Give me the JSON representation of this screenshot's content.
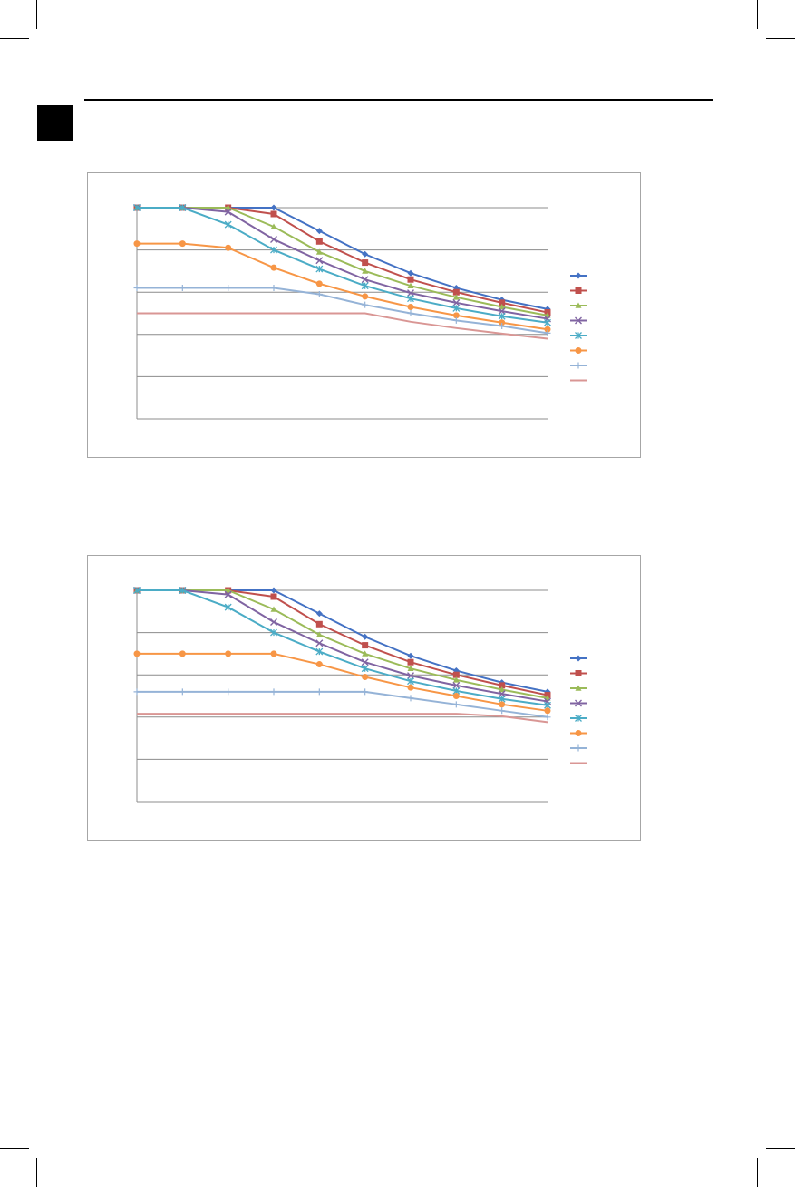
{
  "chart_data": [
    {
      "type": "line",
      "title": "",
      "xlabel": "",
      "ylabel": "",
      "x": [
        1,
        2,
        3,
        4,
        5,
        6,
        7,
        8,
        9,
        10
      ],
      "ylim": [
        0,
        5
      ],
      "yticks": [
        0,
        1,
        2,
        3,
        4,
        5
      ],
      "grid": true,
      "legend_position": "right",
      "series": [
        {
          "marker": "diamond",
          "color": "#4472c4",
          "values": [
            5,
            5,
            5,
            5,
            4.45,
            3.9,
            3.45,
            3.1,
            2.82,
            2.6
          ]
        },
        {
          "marker": "square",
          "color": "#c0504d",
          "values": [
            5,
            5,
            5,
            4.85,
            4.2,
            3.7,
            3.3,
            3.0,
            2.75,
            2.52
          ]
        },
        {
          "marker": "triangle",
          "color": "#9bbb59",
          "values": [
            5,
            5,
            5,
            4.55,
            3.95,
            3.5,
            3.15,
            2.88,
            2.65,
            2.45
          ]
        },
        {
          "marker": "x",
          "color": "#8064a2",
          "values": [
            5,
            5,
            4.9,
            4.25,
            3.75,
            3.3,
            2.98,
            2.75,
            2.55,
            2.37
          ]
        },
        {
          "marker": "star",
          "color": "#4bacc6",
          "values": [
            5,
            5,
            4.6,
            4.0,
            3.55,
            3.15,
            2.85,
            2.62,
            2.43,
            2.28
          ]
        },
        {
          "marker": "circle",
          "color": "#f79646",
          "values": [
            4.15,
            4.15,
            4.05,
            3.58,
            3.2,
            2.9,
            2.65,
            2.45,
            2.28,
            2.12
          ]
        },
        {
          "marker": "plus",
          "color": "#95b3d7",
          "values": [
            3.1,
            3.1,
            3.1,
            3.1,
            2.95,
            2.7,
            2.5,
            2.33,
            2.2,
            2.03
          ]
        },
        {
          "marker": "none",
          "color": "#d99694",
          "values": [
            2.5,
            2.5,
            2.5,
            2.5,
            2.5,
            2.5,
            2.3,
            2.15,
            2.02,
            1.9
          ]
        }
      ]
    },
    {
      "type": "line",
      "title": "",
      "xlabel": "",
      "ylabel": "",
      "x": [
        1,
        2,
        3,
        4,
        5,
        6,
        7,
        8,
        9,
        10
      ],
      "ylim": [
        0,
        5
      ],
      "yticks": [
        0,
        1,
        2,
        3,
        4,
        5
      ],
      "grid": true,
      "legend_position": "right",
      "series": [
        {
          "marker": "diamond",
          "color": "#4472c4",
          "values": [
            5,
            5,
            5,
            5,
            4.45,
            3.9,
            3.45,
            3.1,
            2.82,
            2.6
          ]
        },
        {
          "marker": "square",
          "color": "#c0504d",
          "values": [
            5,
            5,
            5,
            4.85,
            4.2,
            3.7,
            3.3,
            3.0,
            2.75,
            2.52
          ]
        },
        {
          "marker": "triangle",
          "color": "#9bbb59",
          "values": [
            5,
            5,
            5,
            4.55,
            3.95,
            3.5,
            3.15,
            2.88,
            2.65,
            2.45
          ]
        },
        {
          "marker": "x",
          "color": "#8064a2",
          "values": [
            5,
            5,
            4.9,
            4.25,
            3.75,
            3.3,
            2.98,
            2.75,
            2.55,
            2.37
          ]
        },
        {
          "marker": "star",
          "color": "#4bacc6",
          "values": [
            5,
            5,
            4.6,
            4.0,
            3.55,
            3.15,
            2.85,
            2.62,
            2.43,
            2.28
          ]
        },
        {
          "marker": "circle",
          "color": "#f79646",
          "values": [
            3.5,
            3.5,
            3.5,
            3.5,
            3.25,
            2.95,
            2.7,
            2.5,
            2.3,
            2.15
          ]
        },
        {
          "marker": "plus",
          "color": "#95b3d7",
          "values": [
            2.6,
            2.6,
            2.6,
            2.6,
            2.6,
            2.6,
            2.45,
            2.3,
            2.15,
            2.0
          ]
        },
        {
          "marker": "none",
          "color": "#d99694",
          "values": [
            2.08,
            2.08,
            2.08,
            2.08,
            2.08,
            2.08,
            2.08,
            2.08,
            2.02,
            1.88
          ]
        }
      ]
    }
  ]
}
